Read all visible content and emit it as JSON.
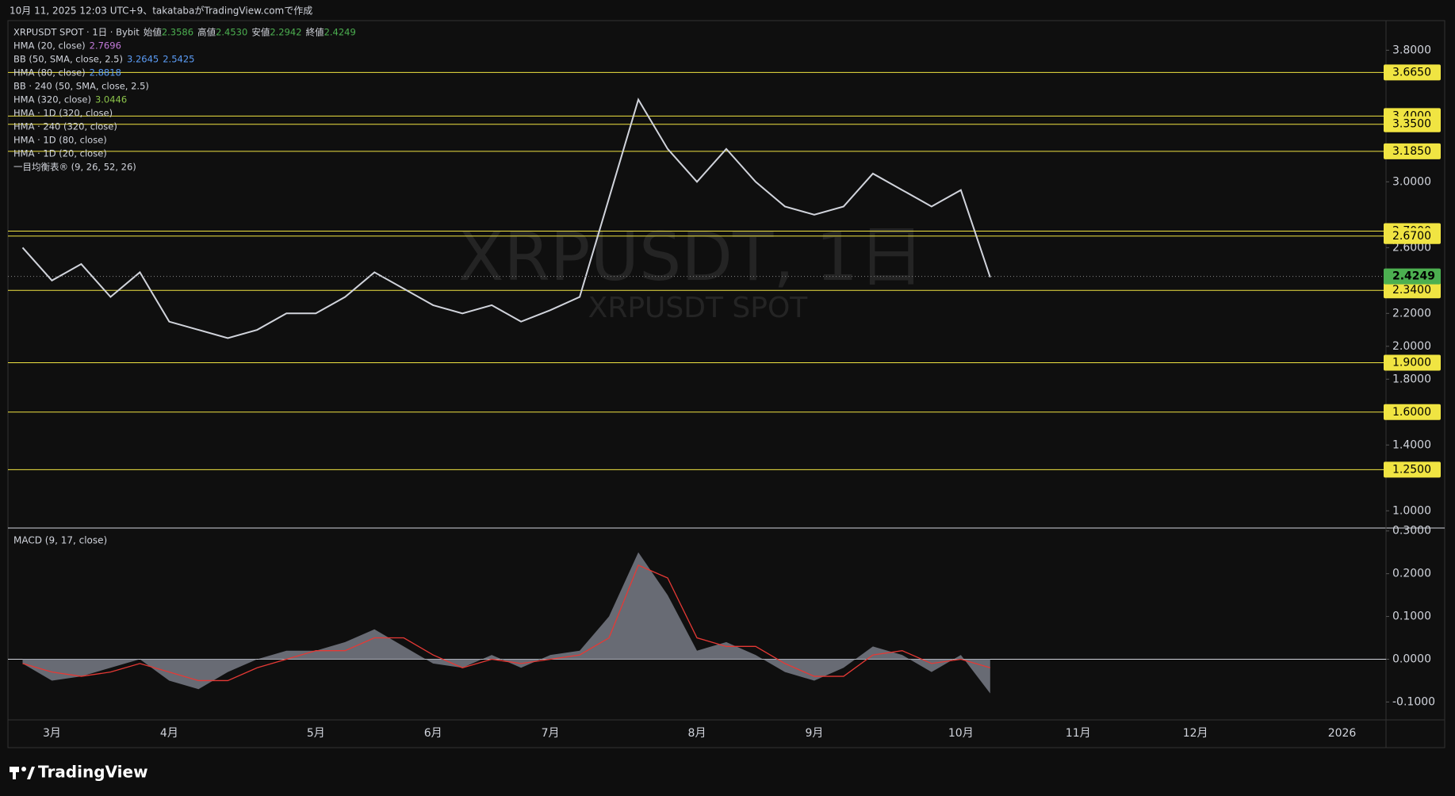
{
  "header": {
    "caption": "10月 11, 2025 12:03 UTC+9、takatabaがTradingView.comで作成",
    "symbol": "XRPUSDT SPOT · 1日 · Bybit",
    "ohlc": [
      {
        "label": "始値",
        "value": "2.3586"
      },
      {
        "label": "高値",
        "value": "2.4530"
      },
      {
        "label": "安値",
        "value": "2.2942"
      },
      {
        "label": "終値",
        "value": "2.4249"
      }
    ],
    "indicators": [
      {
        "label": "HMA (20, close)",
        "values": [
          "2.7696"
        ],
        "color": "#c27ad9"
      },
      {
        "label": "BB (50, SMA, close, 2.5)",
        "values": [
          "3.2645",
          "2.5425"
        ],
        "color": "#5b9cf6"
      },
      {
        "label": "HMA (80, close)",
        "values": [
          "2.8818"
        ],
        "color": "#5b9cf6"
      },
      {
        "label": "BB · 240 (50, SMA, close, 2.5)",
        "values": [],
        "color": "#5b9cf6"
      },
      {
        "label": "HMA (320, close)",
        "values": [
          "3.0446"
        ],
        "color": "#8bc34a"
      },
      {
        "label": "HMA · 1D (320, close)",
        "values": [],
        "color": "#8bc34a"
      },
      {
        "label": "HMA · 240 (320, close)",
        "values": [],
        "color": "#8bc34a"
      },
      {
        "label": "HMA · 1D (80, close)",
        "values": [],
        "color": "#8bc34a"
      },
      {
        "label": "HMA · 1D (20, close)",
        "values": [],
        "color": "#8bc34a"
      },
      {
        "label": "一目均衡表® (9, 26, 52, 26)",
        "values": [],
        "color": "#8bc34a"
      }
    ]
  },
  "footer": {
    "logo": "TradingView"
  },
  "chart_data": [
    {
      "type": "line",
      "watermark": "XRPUSDT, 1日",
      "watermark_sub": "XRPUSDT SPOT",
      "categories": [
        null,
        "3月",
        null,
        null,
        null,
        "4月",
        null,
        null,
        null,
        null,
        "5月",
        null,
        null,
        null,
        "6月",
        null,
        null,
        null,
        "7月",
        null,
        null,
        null,
        null,
        "8月",
        null,
        null,
        null,
        "9月",
        null,
        null,
        null,
        null,
        "10月",
        null,
        null,
        null,
        "11月",
        null,
        null,
        null,
        "12月",
        null,
        null,
        null,
        null,
        "2026",
        null
      ],
      "values": [
        2.6,
        2.4,
        2.5,
        2.3,
        2.45,
        2.15,
        2.1,
        2.05,
        2.1,
        2.2,
        2.2,
        2.3,
        2.45,
        2.35,
        2.25,
        2.2,
        2.25,
        2.15,
        2.22,
        2.3,
        2.9,
        3.5,
        3.2,
        3.0,
        3.2,
        3.0,
        2.85,
        2.8,
        2.85,
        3.05,
        2.95,
        2.85,
        2.95,
        2.42,
        null,
        null,
        null,
        null,
        null,
        null,
        null,
        null,
        null,
        null,
        null,
        null,
        null
      ],
      "color": "#d1d4dc",
      "ylim": [
        0.9,
        3.98
      ],
      "yticks": [
        {
          "value": 1,
          "label": "1.0000"
        },
        {
          "value": 1.4,
          "label": "1.4000"
        },
        {
          "value": 1.8,
          "label": "1.8000"
        },
        {
          "value": 2,
          "label": "2.0000"
        },
        {
          "value": 2.2,
          "label": "2.2000"
        },
        {
          "value": 2.6,
          "label": "2.6000"
        },
        {
          "value": 3,
          "label": "3.0000"
        },
        {
          "value": 3.8,
          "label": "3.8000"
        }
      ],
      "levels": [
        {
          "value": 3.665,
          "label": "3.6650"
        },
        {
          "value": 3.4,
          "label": "3.4000"
        },
        {
          "value": 3.35,
          "label": "3.3500"
        },
        {
          "value": 3.185,
          "label": "3.1850"
        },
        {
          "value": 2.7,
          "label": "2.7000"
        },
        {
          "value": 2.67,
          "label": "2.6700"
        },
        {
          "value": 2.34,
          "label": "2.3400"
        },
        {
          "value": 1.9,
          "label": "1.9000"
        },
        {
          "value": 1.6,
          "label": "1.6000"
        },
        {
          "value": 1.25,
          "label": "1.2500"
        }
      ],
      "level_color": "#f0e442",
      "last": {
        "value": 2.4249,
        "label": "2.4249"
      },
      "last_color": "#4caf50"
    },
    {
      "type": "area",
      "title": "MACD (9, 17, close)",
      "series": [
        {
          "color": "#787b86",
          "values": [
            -0.01,
            -0.05,
            -0.04,
            -0.02,
            0.0,
            -0.05,
            -0.07,
            -0.03,
            0.0,
            0.02,
            0.02,
            0.04,
            0.07,
            0.03,
            -0.01,
            -0.02,
            0.01,
            -0.02,
            0.01,
            0.02,
            0.1,
            0.25,
            0.15,
            0.02,
            0.04,
            0.01,
            -0.03,
            -0.05,
            -0.02,
            0.03,
            0.01,
            -0.03,
            0.01,
            -0.08,
            null,
            null,
            null,
            null,
            null,
            null,
            null,
            null,
            null,
            null,
            null,
            null,
            null
          ]
        },
        {
          "color": "#e53935",
          "values": [
            -0.01,
            -0.03,
            -0.04,
            -0.03,
            -0.01,
            -0.03,
            -0.05,
            -0.05,
            -0.02,
            0.0,
            0.02,
            0.02,
            0.05,
            0.05,
            0.01,
            -0.02,
            0.0,
            -0.01,
            0.0,
            0.01,
            0.05,
            0.22,
            0.19,
            0.05,
            0.03,
            0.03,
            -0.01,
            -0.04,
            -0.04,
            0.01,
            0.02,
            -0.01,
            0.0,
            -0.02,
            null,
            null,
            null,
            null,
            null,
            null,
            null,
            null,
            null,
            null,
            null,
            null,
            null
          ]
        }
      ],
      "ylim": [
        -0.14,
        0.305
      ],
      "yticks": [
        {
          "value": 0.3,
          "label": "0.3000"
        },
        {
          "value": 0.2,
          "label": "0.2000"
        },
        {
          "value": 0.1,
          "label": "0.1000"
        },
        {
          "value": 0,
          "label": "0.0000"
        },
        {
          "value": -0.1,
          "label": "-0.1000"
        }
      ]
    }
  ]
}
